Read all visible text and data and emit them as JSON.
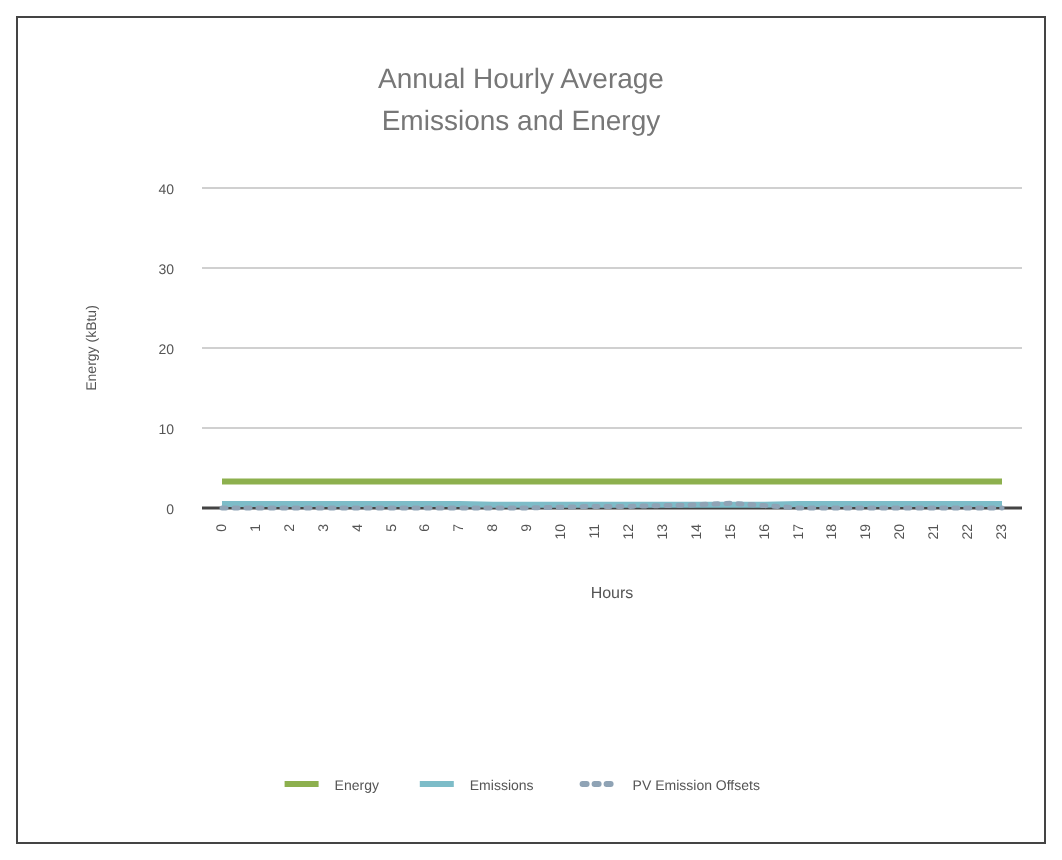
{
  "chart_data": {
    "type": "line",
    "title": "Annual Hourly Average\nEmissions and Energy",
    "xlabel": "Hours",
    "ylabel": "Energy (kBtu)",
    "categories": [
      "0",
      "1",
      "2",
      "3",
      "4",
      "5",
      "6",
      "7",
      "8",
      "9",
      "10",
      "11",
      "12",
      "13",
      "14",
      "15",
      "16",
      "17",
      "18",
      "19",
      "20",
      "21",
      "22",
      "23"
    ],
    "series": [
      {
        "name": "Energy",
        "color": "#8db04e",
        "line_style": "solid",
        "values": [
          3.3,
          3.3,
          3.3,
          3.3,
          3.3,
          3.3,
          3.3,
          3.3,
          3.3,
          3.3,
          3.3,
          3.3,
          3.3,
          3.3,
          3.3,
          3.3,
          3.3,
          3.3,
          3.3,
          3.3,
          3.3,
          3.3,
          3.3,
          3.3
        ]
      },
      {
        "name": "Emissions",
        "color": "#7dbcc8",
        "line_style": "solid",
        "values": [
          0.5,
          0.5,
          0.5,
          0.5,
          0.5,
          0.5,
          0.5,
          0.5,
          0.4,
          0.4,
          0.4,
          0.4,
          0.4,
          0.4,
          0.4,
          0.4,
          0.4,
          0.5,
          0.5,
          0.5,
          0.5,
          0.5,
          0.5,
          0.5
        ]
      },
      {
        "name": "PV Emission Offsets",
        "color": "#8fa3b5",
        "line_style": "dotted",
        "values": [
          0,
          0,
          0,
          0,
          0,
          0,
          0,
          0,
          0,
          0,
          0.1,
          0.2,
          0.2,
          0.3,
          0.4,
          0.6,
          0.3,
          0,
          0,
          0,
          0,
          0,
          0,
          0
        ]
      }
    ],
    "ylim": [
      0,
      40
    ],
    "yticks": [
      0,
      10,
      20,
      30,
      40
    ],
    "grid": "y",
    "legend": "bottom",
    "marker": "none"
  }
}
